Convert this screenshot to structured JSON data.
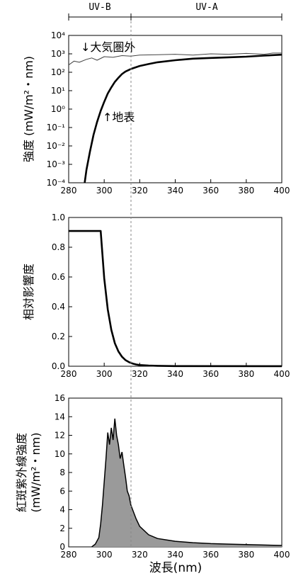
{
  "bands": [
    {
      "label": "UV-B",
      "range": [
        280,
        315
      ]
    },
    {
      "label": "UV-A",
      "range": [
        315,
        400
      ]
    }
  ],
  "chart_data": [
    {
      "type": "line",
      "ylabel": "強度 (mW/m²・nm)",
      "yscale": "log",
      "xlim": [
        280,
        400
      ],
      "ylim": [
        0.0001,
        10000
      ],
      "xticks": [
        "280",
        "300",
        "320",
        "340",
        "360",
        "380",
        "400"
      ],
      "yticks": [
        "10⁴",
        "10³",
        "10²",
        "10¹",
        "10⁰",
        "10⁻¹",
        "10⁻²",
        "10⁻³",
        "10⁻⁴"
      ],
      "annotations": [
        "↓大気圏外",
        "↑地表"
      ],
      "series": [
        {
          "name": "大気圏外",
          "x": [
            280,
            283,
            286,
            290,
            293,
            296,
            300,
            305,
            310,
            315,
            320,
            330,
            340,
            350,
            360,
            370,
            380,
            390,
            395,
            400
          ],
          "y": [
            250,
            400,
            350,
            500,
            600,
            450,
            700,
            650,
            800,
            750,
            850,
            900,
            950,
            850,
            1000,
            950,
            1050,
            950,
            1100,
            1100
          ]
        },
        {
          "name": "地表",
          "x": [
            289,
            290,
            292,
            294,
            296,
            298,
            300,
            302,
            304,
            306,
            308,
            310,
            312,
            315,
            320,
            325,
            330,
            340,
            350,
            360,
            370,
            380,
            390,
            400
          ],
          "y": [
            0.0001,
            0.0005,
            0.005,
            0.04,
            0.2,
            0.8,
            2.5,
            7,
            15,
            30,
            50,
            80,
            110,
            150,
            220,
            280,
            350,
            450,
            550,
            600,
            650,
            700,
            800,
            900
          ]
        }
      ]
    },
    {
      "type": "line",
      "ylabel": "相対影響度",
      "xlim": [
        280,
        400
      ],
      "ylim": [
        0,
        1.1
      ],
      "xticks": [
        "280",
        "300",
        "320",
        "340",
        "360",
        "380",
        "400"
      ],
      "yticks": [
        "1.0",
        "0.8",
        "0.6",
        "0.4",
        "0.2",
        "0.0"
      ],
      "series": [
        {
          "x": [
            280,
            290,
            298,
            300,
            302,
            304,
            306,
            308,
            310,
            312,
            314,
            316,
            318,
            320,
            325,
            330,
            340,
            400
          ],
          "y": [
            1.0,
            1.0,
            1.0,
            0.65,
            0.42,
            0.27,
            0.17,
            0.11,
            0.07,
            0.045,
            0.03,
            0.02,
            0.013,
            0.009,
            0.005,
            0.003,
            0.001,
            0.0005
          ]
        }
      ]
    },
    {
      "type": "area",
      "ylabel": "紅斑紫外線強度 (mW/m²・nm)",
      "xlim": [
        280,
        400
      ],
      "ylim": [
        0,
        16
      ],
      "xticks": [
        "280",
        "300",
        "320",
        "340",
        "360",
        "380",
        "400"
      ],
      "yticks": [
        "16",
        "14",
        "12",
        "10",
        "8",
        "6",
        "4",
        "2",
        "0"
      ],
      "xlabel": "波長(nm)",
      "series": [
        {
          "x": [
            293,
            295,
            297,
            298,
            299,
            300,
            301,
            302,
            303,
            304,
            305,
            306,
            307,
            308,
            309,
            310,
            311,
            312,
            313,
            314,
            315,
            316,
            318,
            320,
            325,
            330,
            340,
            350,
            360,
            370,
            380,
            390,
            400
          ],
          "y": [
            0,
            0.3,
            1.0,
            2.5,
            4.5,
            7.0,
            9.5,
            12.3,
            11.0,
            12.8,
            11.5,
            13.8,
            12.0,
            11.0,
            9.5,
            10.2,
            8.8,
            7.5,
            6.0,
            5.5,
            4.5,
            4.0,
            3.0,
            2.2,
            1.3,
            0.9,
            0.6,
            0.45,
            0.35,
            0.3,
            0.25,
            0.2,
            0.15
          ]
        }
      ]
    }
  ]
}
